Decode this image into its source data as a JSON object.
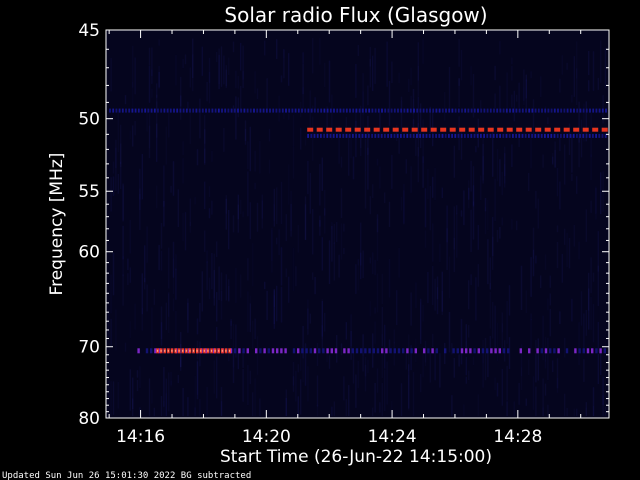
{
  "chart_data": {
    "type": "heatmap",
    "title": "Solar radio Flux (Glasgow)",
    "ylabel": "Frequency [MHz]",
    "xlabel": "Start Time (26-Jun-22 14:15:00)",
    "footer": "Updated Sun Jun 26 15:01:30 2022   BG subtracted",
    "x_ticks": [
      "14:16",
      "14:20",
      "14:24",
      "14:28"
    ],
    "x_tick_minutes": [
      16,
      20,
      24,
      28
    ],
    "x_range_minutes": [
      14.9,
      30.9
    ],
    "y_ticks": [
      45,
      50,
      55,
      60,
      70,
      80
    ],
    "ylim": [
      45,
      80
    ],
    "grid": false,
    "colors": {
      "background": "#000000",
      "plot_bg": "#05051e",
      "low": "#1a1aa8",
      "mid": "#8a2ad8",
      "high": "#ff3a1e",
      "peak": "#ffa080"
    },
    "features": [
      {
        "label": "steady band ~49.5 MHz",
        "freq": 49.5,
        "t_start": 15.0,
        "t_end": 30.8,
        "intensity": "low"
      },
      {
        "label": "strong band ~50.7 MHz",
        "freq": 50.7,
        "t_start": 21.3,
        "t_end": 30.8,
        "intensity": "high"
      },
      {
        "label": "band ~51.1 MHz",
        "freq": 51.1,
        "t_start": 21.3,
        "t_end": 30.8,
        "intensity": "low"
      },
      {
        "label": "band ~70.5 MHz",
        "freq": 70.5,
        "t_start": 15.9,
        "t_end": 30.8,
        "intensity": "mid"
      },
      {
        "label": "burst ~70.5 MHz",
        "freq": 70.5,
        "t_start": 16.5,
        "t_end": 18.9,
        "intensity": "high"
      }
    ]
  }
}
